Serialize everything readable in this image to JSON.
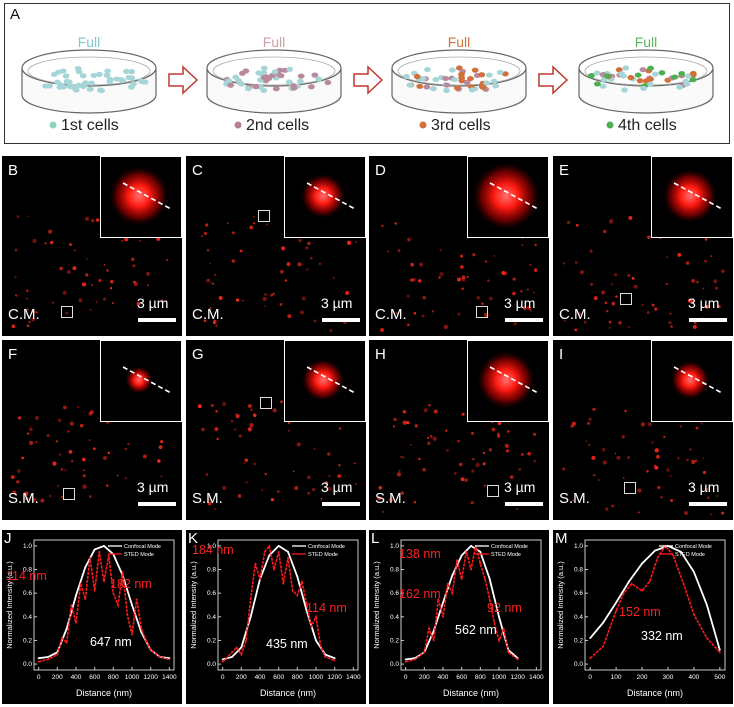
{
  "panel_a": {
    "label": "A",
    "steps": [
      {
        "full_label": "Full",
        "full_color": "#7fc9cc",
        "cells_label": "1st cells",
        "dot_color": "#8fd3b8",
        "dot_colors": [
          "#a6d5d8"
        ]
      },
      {
        "full_label": "Full",
        "full_color": "#c9a1a7",
        "cells_label": "2nd cells",
        "dot_color": "#b67f94",
        "dot_colors": [
          "#a6d5d8",
          "#b9899c"
        ]
      },
      {
        "full_label": "Full",
        "full_color": "#d2703a",
        "cells_label": "3rd cells",
        "dot_color": "#d2703a",
        "dot_colors": [
          "#a6d5d8",
          "#b9899c",
          "#d2703a"
        ]
      },
      {
        "full_label": "Full",
        "full_color": "#5cb85c",
        "cells_label": "4th cells",
        "dot_color": "#4caf50",
        "dot_colors": [
          "#a6d5d8",
          "#b9899c",
          "#d2703a",
          "#4caf50"
        ]
      }
    ],
    "arrow_color": "#c0392b"
  },
  "micro_panels": [
    {
      "label": "B",
      "mode": "C.M.",
      "scale": "3 µm"
    },
    {
      "label": "C",
      "mode": "C.M.",
      "scale": "3 µm"
    },
    {
      "label": "D",
      "mode": "C.M.",
      "scale": "3 µm"
    },
    {
      "label": "E",
      "mode": "C.M.",
      "scale": "3 µm"
    },
    {
      "label": "F",
      "mode": "S.M.",
      "scale": "3 µm"
    },
    {
      "label": "G",
      "mode": "S.M.",
      "scale": "3 µm"
    },
    {
      "label": "H",
      "mode": "S.M.",
      "scale": "3 µm"
    },
    {
      "label": "I",
      "mode": "S.M.",
      "scale": "3 µm"
    }
  ],
  "chart_data": [
    {
      "type": "line",
      "label": "J",
      "xlabel": "Distance (nm)",
      "ylabel": "Normalized Intensity (a.u.)",
      "xlim": [
        -50,
        1450
      ],
      "ylim": [
        -0.05,
        1.05
      ],
      "xticks": [
        0,
        200,
        400,
        600,
        800,
        1000,
        1200,
        1400
      ],
      "yticks": [
        0.0,
        0.2,
        0.4,
        0.6,
        0.8,
        1.0
      ],
      "legend": [
        "Confocal Mode",
        "STED Mode"
      ],
      "series": [
        {
          "name": "Confocal Mode",
          "x": [
            0,
            100,
            200,
            300,
            400,
            500,
            600,
            700,
            800,
            900,
            1000,
            1100,
            1200,
            1300,
            1400
          ],
          "y": [
            0.05,
            0.06,
            0.1,
            0.3,
            0.58,
            0.82,
            0.97,
            1.0,
            0.93,
            0.75,
            0.5,
            0.27,
            0.12,
            0.06,
            0.05
          ]
        },
        {
          "name": "STED Mode",
          "x": [
            0,
            100,
            200,
            250,
            300,
            350,
            400,
            450,
            500,
            550,
            600,
            650,
            700,
            750,
            800,
            850,
            900,
            950,
            1000,
            1050,
            1100,
            1150,
            1200,
            1300,
            1400
          ],
          "y": [
            0.02,
            0.04,
            0.08,
            0.22,
            0.18,
            0.5,
            0.35,
            0.68,
            0.55,
            0.9,
            0.62,
            0.95,
            0.7,
            0.92,
            0.6,
            0.5,
            0.78,
            0.42,
            0.25,
            0.55,
            0.3,
            0.2,
            0.12,
            0.06,
            0.04
          ]
        }
      ],
      "annotations": [
        {
          "text": "114 nm",
          "color": "#ff2020"
        },
        {
          "text": "182 nm",
          "color": "#ff2020"
        },
        {
          "text": "647 nm",
          "color": "#ffffff"
        }
      ]
    },
    {
      "type": "line",
      "label": "K",
      "xlabel": "Distance (nm)",
      "ylabel": "Normalized Intensity (a.u.)",
      "xlim": [
        -50,
        1450
      ],
      "ylim": [
        -0.05,
        1.05
      ],
      "xticks": [
        0,
        200,
        400,
        600,
        800,
        1000,
        1200,
        1400
      ],
      "yticks": [
        0.0,
        0.2,
        0.4,
        0.6,
        0.8,
        1.0
      ],
      "legend": [
        "Confocal Mode",
        "STED Mode"
      ],
      "series": [
        {
          "name": "Confocal Mode",
          "x": [
            0,
            100,
            200,
            300,
            400,
            500,
            600,
            700,
            800,
            900,
            1000,
            1100,
            1200
          ],
          "y": [
            0.04,
            0.06,
            0.14,
            0.4,
            0.72,
            0.92,
            1.0,
            0.95,
            0.74,
            0.45,
            0.2,
            0.08,
            0.05
          ]
        },
        {
          "name": "STED Mode",
          "x": [
            0,
            100,
            150,
            200,
            250,
            300,
            350,
            400,
            450,
            500,
            550,
            600,
            650,
            700,
            750,
            800,
            850,
            900,
            950,
            1000,
            1050,
            1100,
            1200
          ],
          "y": [
            0.02,
            0.1,
            0.14,
            0.08,
            0.2,
            0.55,
            0.85,
            0.72,
            0.95,
            1.0,
            0.8,
            0.95,
            0.68,
            0.9,
            0.62,
            0.58,
            0.7,
            0.5,
            0.32,
            0.4,
            0.15,
            0.06,
            0.03
          ]
        }
      ],
      "annotations": [
        {
          "text": "184 nm",
          "color": "#ff2020"
        },
        {
          "text": "114 nm",
          "color": "#ff2020"
        },
        {
          "text": "435 nm",
          "color": "#ffffff"
        }
      ]
    },
    {
      "type": "line",
      "label": "L",
      "xlabel": "Distance (nm)",
      "ylabel": "Normalized Intensity (a.u.)",
      "xlim": [
        -50,
        1450
      ],
      "ylim": [
        -0.05,
        1.05
      ],
      "xticks": [
        0,
        200,
        400,
        600,
        800,
        1000,
        1200,
        1400
      ],
      "yticks": [
        0.0,
        0.2,
        0.4,
        0.6,
        0.8,
        1.0
      ],
      "legend": [
        "Confocal Mode",
        "STED Mode"
      ],
      "series": [
        {
          "name": "Confocal Mode",
          "x": [
            0,
            100,
            200,
            300,
            400,
            500,
            600,
            700,
            800,
            900,
            1000,
            1100,
            1200
          ],
          "y": [
            0.04,
            0.05,
            0.1,
            0.28,
            0.52,
            0.75,
            0.92,
            1.0,
            0.95,
            0.72,
            0.4,
            0.12,
            0.05
          ]
        },
        {
          "name": "STED Mode",
          "x": [
            0,
            100,
            200,
            250,
            300,
            350,
            400,
            450,
            500,
            550,
            600,
            650,
            700,
            750,
            800,
            850,
            900,
            950,
            1000,
            1050,
            1100,
            1200
          ],
          "y": [
            0.02,
            0.04,
            0.1,
            0.3,
            0.2,
            0.55,
            0.4,
            0.68,
            0.6,
            0.88,
            0.72,
            0.95,
            0.8,
            1.0,
            0.85,
            0.72,
            0.55,
            0.35,
            0.2,
            0.3,
            0.1,
            0.04
          ]
        }
      ],
      "annotations": [
        {
          "text": "138 nm",
          "color": "#ff2020"
        },
        {
          "text": "162 nm",
          "color": "#ff2020"
        },
        {
          "text": "92 nm",
          "color": "#ff2020"
        },
        {
          "text": "562 nm",
          "color": "#ffffff"
        }
      ]
    },
    {
      "type": "line",
      "label": "M",
      "xlabel": "Distance (nm)",
      "ylabel": "Normalized Intensity (a.u.)",
      "xlim": [
        -20,
        520
      ],
      "ylim": [
        -0.05,
        1.05
      ],
      "xticks": [
        0,
        100,
        200,
        300,
        400,
        500
      ],
      "yticks": [
        0.0,
        0.2,
        0.4,
        0.6,
        0.8,
        1.0
      ],
      "legend": [
        "Confocal Mode",
        "STED Mode"
      ],
      "series": [
        {
          "name": "Confocal Mode",
          "x": [
            0,
            50,
            100,
            150,
            200,
            250,
            300,
            350,
            400,
            450,
            500
          ],
          "y": [
            0.22,
            0.35,
            0.52,
            0.7,
            0.85,
            0.96,
            1.0,
            0.95,
            0.78,
            0.5,
            0.12
          ]
        },
        {
          "name": "STED Mode",
          "x": [
            0,
            50,
            100,
            130,
            160,
            200,
            230,
            260,
            290,
            320,
            360,
            400,
            450,
            500
          ],
          "y": [
            0.05,
            0.15,
            0.45,
            0.6,
            0.68,
            0.62,
            0.7,
            0.9,
            1.0,
            0.92,
            0.68,
            0.42,
            0.22,
            0.1
          ]
        }
      ],
      "annotations": [
        {
          "text": "152 nm",
          "color": "#ff2020"
        },
        {
          "text": "332 nm",
          "color": "#ffffff"
        }
      ]
    }
  ]
}
